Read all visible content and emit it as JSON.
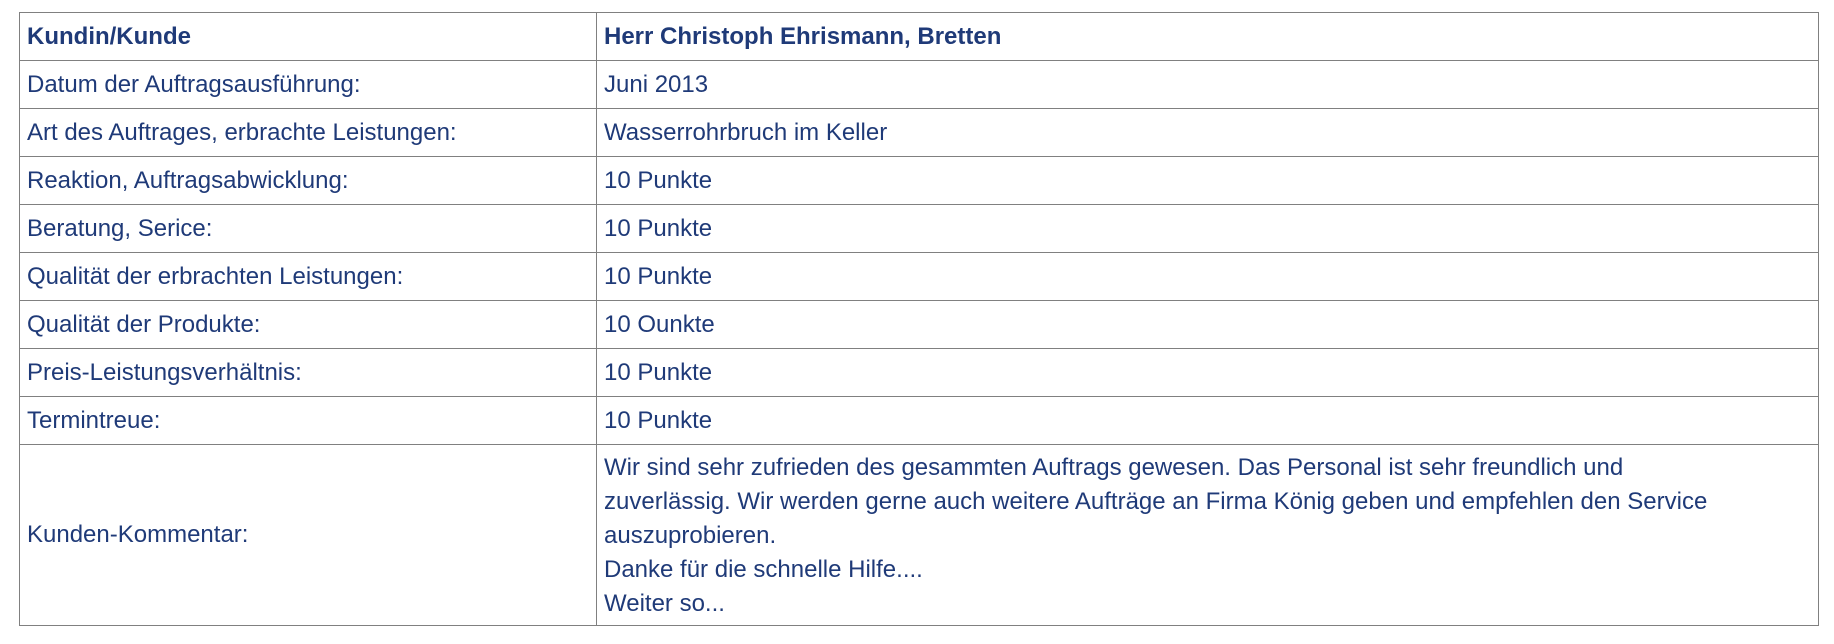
{
  "table": {
    "header": {
      "label": "Kundin/Kunde",
      "value": "Herr Christoph Ehrismann, Bretten"
    },
    "rows": [
      {
        "label": "Datum der Auftragsausführung:",
        "value": "Juni 2013"
      },
      {
        "label": "Art des Auftrages, erbrachte Leistungen:",
        "value": "Wasserrohrbruch im Keller"
      },
      {
        "label": "Reaktion, Auftragsabwicklung:",
        "value": "10 Punkte"
      },
      {
        "label": "Beratung, Serice:",
        "value": "10 Punkte"
      },
      {
        "label": "Qualität der erbrachten Leistungen:",
        "value": "10 Punkte"
      },
      {
        "label": "Qualität der Produkte:",
        "value": "10 Ounkte"
      },
      {
        "label": "Preis-Leistungsverhältnis:",
        "value": "10 Punkte"
      },
      {
        "label": "Termintreue:",
        "value": "10 Punkte"
      }
    ],
    "comment": {
      "label": "Kunden-Kommentar:",
      "lines": [
        "Wir sind sehr zufrieden des gesammten Auftrags gewesen. Das Personal ist sehr freundlich und",
        "zuverlässig. Wir werden gerne auch weitere Aufträge an Firma König geben und empfehlen den Service",
        "auszuprobieren.",
        "Danke für die schnelle Hilfe....",
        "Weiter so..."
      ]
    }
  }
}
